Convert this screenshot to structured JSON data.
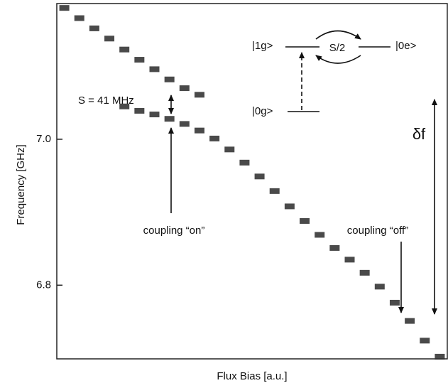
{
  "chart_data": {
    "type": "spectroscopy",
    "x_label": "Flux Bias [a.u.]",
    "y_label": "Frequency [GHz]",
    "categories": [
      null,
      null,
      null,
      null,
      null,
      null,
      null,
      null,
      null,
      null,
      null,
      null,
      null,
      null,
      null,
      null,
      null,
      null,
      null,
      null,
      null,
      null,
      null,
      null,
      null,
      null
    ],
    "series": [
      {
        "color": "#2a2a2a",
        "values": [
          7.18,
          7.166,
          7.152,
          7.138,
          7.123,
          7.109,
          7.096,
          7.082,
          7.07,
          7.061,
          null,
          null,
          null,
          null,
          null,
          null,
          null,
          null,
          null,
          null,
          null,
          null,
          null,
          null,
          null,
          null
        ]
      },
      {
        "color": "#2a2a2a",
        "values": [
          null,
          null,
          null,
          null,
          7.045,
          7.039,
          7.034,
          7.028,
          7.021,
          7.012,
          7.001,
          6.986,
          6.968,
          6.949,
          6.929,
          6.908,
          6.888,
          6.869,
          6.851,
          6.835,
          6.817,
          6.798,
          6.776,
          6.751,
          6.724,
          6.702
        ]
      }
    ],
    "ylim": [
      6.699,
      7.186
    ],
    "yticks": [
      {
        "value": 7.0,
        "label": "7.0"
      },
      {
        "value": 6.8,
        "label": "6.8"
      }
    ],
    "annotations": {
      "splitting": "S = 41 MHz",
      "coupling_on": "coupling “on”",
      "coupling_off": "coupling “off”",
      "detuning": "δf",
      "state_1g": "|1g>",
      "state_0e": "|0e>",
      "state_0g": "|0g>",
      "half_splitting": "S/2"
    }
  }
}
